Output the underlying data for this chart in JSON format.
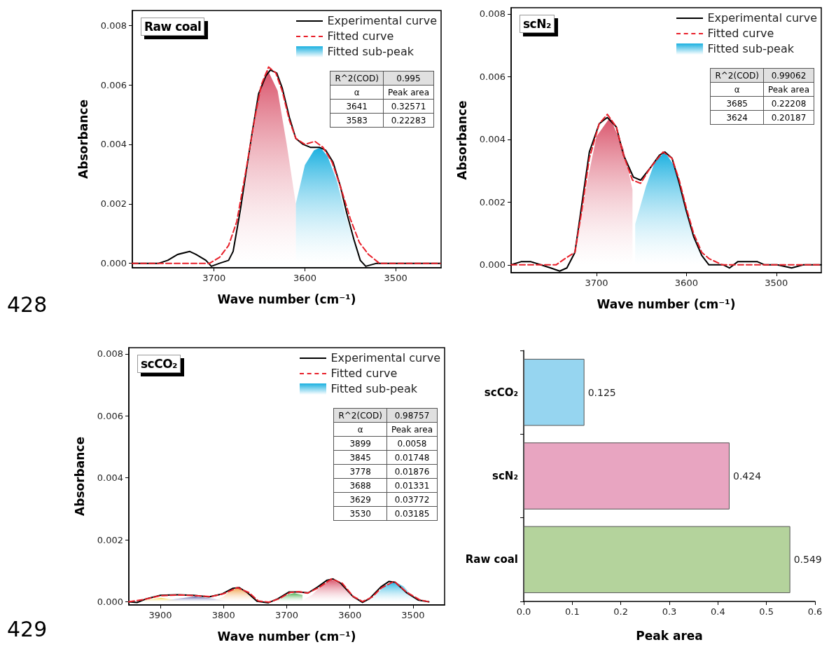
{
  "chart_data": [
    {
      "type": "line",
      "title": "Raw coal",
      "xlabel": "Wave number (cm⁻¹)",
      "ylabel": "Absorbance",
      "xlim": [
        3790,
        3450
      ],
      "xticks": [
        3700,
        3600,
        3500
      ],
      "ylim": [
        -0.00015,
        0.0085
      ],
      "yticks": [
        {
          "value": 0,
          "label": "0.000"
        },
        {
          "value": 0.002,
          "label": "0.002"
        },
        {
          "value": 0.004,
          "label": "0.004"
        },
        {
          "value": 0.006,
          "label": "0.006"
        },
        {
          "value": 0.008,
          "label": "0.008"
        }
      ],
      "grid": false,
      "legend": "top right",
      "marker": "none",
      "annotations": [
        "R^2(COD)",
        "0.995",
        "α",
        "Peak area",
        "3641",
        "0.32571",
        "3583",
        "0.22283",
        "428"
      ],
      "series": [
        {
          "type": "line",
          "name": "Experimental curve",
          "color": "#000000",
          "x": [
            3790,
            3761,
            3751,
            3740,
            3727,
            3720,
            3709,
            3703,
            3694,
            3684,
            3679,
            3671,
            3663,
            3658,
            3651,
            3643,
            3638,
            3631,
            3625,
            3617,
            3610,
            3602,
            3594,
            3584,
            3577,
            3569,
            3561,
            3554,
            3546,
            3539,
            3533,
            3521,
            3510,
            3484,
            3471,
            3451
          ],
          "values": [
            0,
            0,
            0.0001,
            0.0003,
            0.0004,
            0.0003,
            0.0001,
            -0.0001,
            0,
            0.0001,
            0.0004,
            0.0018,
            0.0034,
            0.0044,
            0.0057,
            0.0063,
            0.0065,
            0.0064,
            0.0059,
            0.0049,
            0.0042,
            0.004,
            0.0039,
            0.0039,
            0.0038,
            0.0034,
            0.0026,
            0.0017,
            0.0008,
            0.0001,
            -0.0001,
            0,
            0,
            0,
            0,
            0
          ]
        },
        {
          "type": "line",
          "name": "Fitted curve",
          "color": "#e8202a",
          "line_style": "dashed",
          "x": [
            3790,
            3720,
            3705,
            3694,
            3684,
            3675,
            3665,
            3655,
            3648,
            3640,
            3632,
            3625,
            3617,
            3610,
            3600,
            3589,
            3580,
            3570,
            3560,
            3550,
            3540,
            3530,
            3518,
            3500,
            3451
          ],
          "values": [
            0,
            0,
            0,
            0.0002,
            0.0006,
            0.0014,
            0.0031,
            0.0049,
            0.006,
            0.0066,
            0.0064,
            0.0058,
            0.0048,
            0.0042,
            0.004,
            0.0041,
            0.0039,
            0.0034,
            0.0025,
            0.0015,
            0.0007,
            0.0003,
            0,
            0,
            0
          ]
        },
        {
          "type": "area",
          "name": "Fitted sub-peak",
          "color": "#1ab0e0",
          "x": [
            3610,
            3600,
            3590,
            3583,
            3575,
            3565,
            3555,
            3545,
            3535,
            3525
          ],
          "values": [
            0.002,
            0.0033,
            0.0038,
            0.0039,
            0.0036,
            0.0028,
            0.0016,
            0.0006,
            0.0001,
            0
          ]
        },
        {
          "type": "area",
          "color": "#d9536a",
          "x": [
            3710,
            3690,
            3680,
            3670,
            3660,
            3650,
            3641,
            3630,
            3620,
            3610
          ],
          "values": [
            0,
            0.0001,
            0.0005,
            0.0017,
            0.0038,
            0.0057,
            0.0065,
            0.0058,
            0.004,
            0.002
          ]
        }
      ]
    },
    {
      "type": "line",
      "title": "scN₂",
      "xlabel": "Wave number (cm⁻¹)",
      "ylabel": "Absorbance",
      "xlim": [
        3795,
        3450
      ],
      "xticks": [
        3700,
        3600,
        3500
      ],
      "ylim": [
        -0.00025,
        0.0082
      ],
      "yticks": [
        {
          "value": 0,
          "label": "0.000"
        },
        {
          "value": 0.002,
          "label": "0.002"
        },
        {
          "value": 0.004,
          "label": "0.004"
        },
        {
          "value": 0.006,
          "label": "0.006"
        },
        {
          "value": 0.008,
          "label": "0.008"
        }
      ],
      "grid": false,
      "legend": "top right",
      "marker": "none",
      "annotations": [
        "R^2(COD)",
        "0.99062",
        "α",
        "Peak area",
        "3685",
        "0.22208",
        "3624",
        "0.20187"
      ],
      "series": [
        {
          "type": "line",
          "name": "Experimental curve",
          "color": "#000000",
          "x": [
            3795,
            3784,
            3773,
            3762,
            3751,
            3741,
            3733,
            3724,
            3716,
            3708,
            3697,
            3688,
            3678,
            3670,
            3659,
            3651,
            3640,
            3630,
            3624,
            3616,
            3608,
            3600,
            3592,
            3583,
            3575,
            3567,
            3559,
            3552,
            3543,
            3532,
            3521,
            3513,
            3499,
            3483,
            3470,
            3459,
            3450
          ],
          "values": [
            0,
            0.0001,
            0.0001,
            0,
            -0.0001,
            -0.0002,
            -0.0001,
            0.0004,
            0.002,
            0.0036,
            0.0045,
            0.0047,
            0.0044,
            0.0035,
            0.0028,
            0.0027,
            0.0031,
            0.0035,
            0.0036,
            0.0034,
            0.0026,
            0.0017,
            0.0009,
            0.0003,
            0,
            0,
            0,
            -0.0001,
            0.0001,
            0.0001,
            0.0001,
            0,
            0,
            -0.0001,
            0,
            0,
            0
          ]
        },
        {
          "type": "line",
          "name": "Fitted curve",
          "color": "#e8202a",
          "line_style": "dashed",
          "x": [
            3795,
            3760,
            3745,
            3735,
            3724,
            3716,
            3708,
            3697,
            3688,
            3678,
            3670,
            3660,
            3651,
            3640,
            3626,
            3616,
            3608,
            3600,
            3592,
            3583,
            3575,
            3560,
            3540,
            3450
          ],
          "values": [
            0,
            0,
            0,
            0.0002,
            0.0004,
            0.0018,
            0.0034,
            0.0045,
            0.0048,
            0.0044,
            0.0035,
            0.0027,
            0.0026,
            0.0031,
            0.0036,
            0.0034,
            0.0027,
            0.0018,
            0.001,
            0.0004,
            0.0002,
            0,
            0,
            0
          ]
        },
        {
          "type": "area",
          "name": "Fitted sub-peak",
          "color": "#1ab0e0",
          "x": [
            3657,
            3645,
            3635,
            3624,
            3612,
            3600,
            3590,
            3580,
            3570,
            3560
          ],
          "values": [
            0.0013,
            0.0025,
            0.0033,
            0.0036,
            0.0031,
            0.0018,
            0.0009,
            0.0003,
            0.0001,
            0
          ]
        },
        {
          "type": "area",
          "color": "#d9536a",
          "x": [
            3740,
            3730,
            3720,
            3710,
            3700,
            3685,
            3670,
            3660
          ],
          "values": [
            0,
            0.0002,
            0.001,
            0.0027,
            0.0041,
            0.0047,
            0.0037,
            0.0024
          ]
        }
      ]
    },
    {
      "type": "line",
      "title": "scCO₂",
      "xlabel": "Wave number (cm⁻¹)",
      "ylabel": "Absorbance",
      "xlim": [
        3950,
        3450
      ],
      "xticks": [
        3900,
        3800,
        3700,
        3600,
        3500
      ],
      "ylim": [
        -0.0001,
        0.0082
      ],
      "yticks": [
        {
          "value": 0,
          "label": "0.000"
        },
        {
          "value": 0.002,
          "label": "0.002"
        },
        {
          "value": 0.004,
          "label": "0.004"
        },
        {
          "value": 0.006,
          "label": "0.006"
        },
        {
          "value": 0.008,
          "label": "0.008"
        }
      ],
      "grid": false,
      "legend": "top right",
      "marker": "none",
      "annotations": [
        "R^2(COD)",
        "0.98757",
        "α",
        "Peak area",
        "3899",
        "0.0058",
        "3845",
        "0.01748",
        "3778",
        "0.01876",
        "3688",
        "0.01331",
        "3629",
        "0.03772",
        "3530",
        "0.03185",
        "429"
      ],
      "series": [
        {
          "type": "area",
          "color": "#f2d54a",
          "x": [
            3940,
            3920,
            3899,
            3880,
            3860
          ],
          "values": [
            0,
            7e-05,
            0.00013,
            7e-05,
            0
          ]
        },
        {
          "type": "area",
          "color": "#5a5fa8",
          "x": [
            3900,
            3875,
            3845,
            3815,
            3790
          ],
          "values": [
            0,
            0.0001,
            0.00017,
            0.0001,
            0
          ]
        },
        {
          "type": "area",
          "color": "#f0a24a",
          "x": [
            3820,
            3800,
            3790,
            3778,
            3765,
            3755,
            3740
          ],
          "values": [
            0,
            0.00017,
            0.00035,
            0.00045,
            0.00033,
            0.00015,
            0
          ]
        },
        {
          "type": "area",
          "color": "#4caf50",
          "x": [
            3730,
            3710,
            3698,
            3688,
            3675
          ],
          "values": [
            0,
            0.0001,
            0.00024,
            0.00028,
            0.00022
          ]
        },
        {
          "type": "area",
          "color": "#d9536a",
          "x": [
            3680,
            3660,
            3645,
            3629,
            3613,
            3598,
            3580
          ],
          "values": [
            0,
            0.00022,
            0.00052,
            0.00072,
            0.00055,
            0.0002,
            0
          ]
        },
        {
          "type": "area",
          "name": "Fitted sub-peak",
          "color": "#1ab0e0",
          "x": [
            3580,
            3560,
            3545,
            3530,
            3515,
            3500,
            3480
          ],
          "values": [
            0,
            0.0002,
            0.00052,
            0.00066,
            0.0005,
            0.00017,
            0
          ]
        },
        {
          "type": "line",
          "name": "Experimental curve",
          "color": "#000000",
          "x": [
            3950,
            3937,
            3922,
            3900,
            3874,
            3848,
            3823,
            3803,
            3785,
            3775,
            3762,
            3747,
            3729,
            3714,
            3696,
            3681,
            3666,
            3651,
            3636,
            3627,
            3614,
            3595,
            3580,
            3569,
            3551,
            3538,
            3528,
            3510,
            3492,
            3475
          ],
          "values": [
            0,
            -2e-05,
            0.0001,
            0.00021,
            0.00023,
            0.00021,
            0.00016,
            0.00025,
            0.00044,
            0.00046,
            0.00029,
            2e-05,
            -3e-05,
            0.0001,
            0.00032,
            0.00032,
            0.00029,
            0.00048,
            0.0007,
            0.00074,
            0.00059,
            0.00017,
            -2e-05,
            0.0001,
            0.00048,
            0.00066,
            0.00063,
            0.00029,
            6e-05,
            0
          ]
        },
        {
          "type": "line",
          "name": "Fitted curve",
          "color": "#e8202a",
          "line_style": "dashed",
          "x": [
            3950,
            3925,
            3900,
            3870,
            3845,
            3820,
            3800,
            3778,
            3760,
            3745,
            3728,
            3712,
            3695,
            3681,
            3667,
            3650,
            3629,
            3612,
            3595,
            3580,
            3565,
            3550,
            3530,
            3510,
            3490,
            3475
          ],
          "values": [
            0,
            8e-05,
            0.0002,
            0.00022,
            0.0002,
            0.00017,
            0.00026,
            0.00046,
            0.0003,
            3e-05,
            -1e-05,
            0.0001,
            0.0003,
            0.00033,
            0.00028,
            0.00045,
            0.00074,
            0.0006,
            0.00018,
            1e-05,
            0.00015,
            0.00045,
            0.00066,
            0.00031,
            7e-05,
            0
          ]
        }
      ]
    },
    {
      "type": "bar",
      "orientation": "horizontal",
      "xlabel": "Peak area",
      "categories": [
        "scCO₂",
        "scN₂",
        "Raw coal"
      ],
      "values": [
        0.125,
        0.424,
        0.549
      ],
      "colors": [
        "#96d5f0",
        "#e8a5c1",
        "#b4d39c"
      ],
      "xlim": [
        0,
        0.6
      ],
      "xticks": [
        {
          "value": 0,
          "label": "0.0"
        },
        0.1,
        0.2,
        0.3,
        0.4,
        0.5,
        0.6
      ],
      "data_labels": true,
      "grid": false
    }
  ]
}
